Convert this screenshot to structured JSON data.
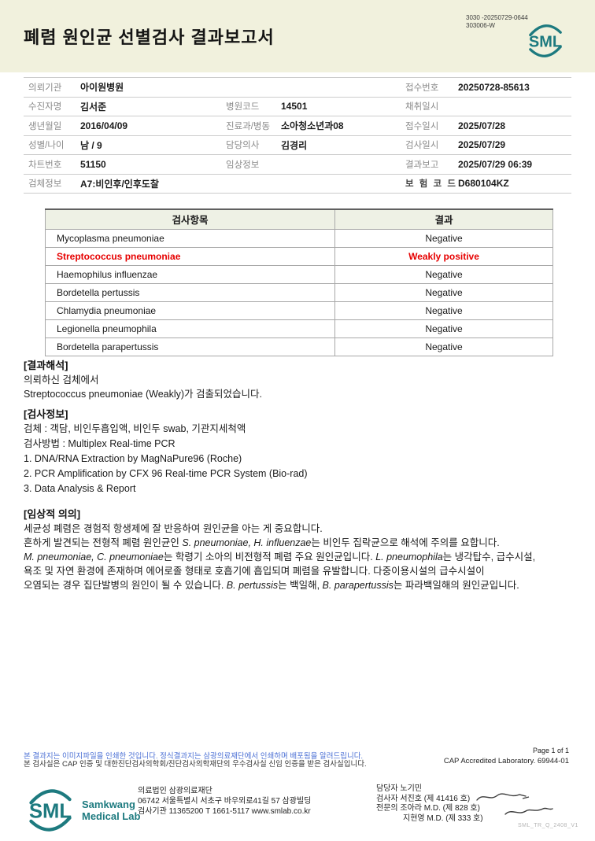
{
  "colors": {
    "accent_teal": "#1d7a7f",
    "header_band_bg": "#f1f1dd",
    "table_header_bg": "#eef1e5",
    "highlight_red": "#e60000",
    "notice_blue": "#4a6fd4"
  },
  "header": {
    "title": "폐렴 원인균 선별검사 결과보고서",
    "code_line1": "3030 -20250729-0644",
    "code_line2": "303006-W",
    "logo_text": "SML"
  },
  "info_rows": [
    {
      "l1": "의뢰기관",
      "v1": "아이원병원",
      "l2": "",
      "v2": "",
      "l3": "접수번호",
      "v3": "20250728-85613"
    },
    {
      "l1": "수진자명",
      "v1": "김서준",
      "l2": "병원코드",
      "v2": "14501",
      "l3": "채취일시",
      "v3": ""
    },
    {
      "l1": "생년월일",
      "v1": "2016/04/09",
      "l2": "진료과/병동",
      "v2": "소아청소년과08",
      "l3": "접수일시",
      "v3": "2025/07/28"
    },
    {
      "l1": "성별/나이",
      "v1": "남 / 9",
      "l2": "담당의사",
      "v2": "김경리",
      "l3": "검사일시",
      "v3": "2025/07/29"
    },
    {
      "l1": "차트번호",
      "v1": "51150",
      "l2": "임상정보",
      "v2": "",
      "l3": "결과보고",
      "v3": "2025/07/29 06:39"
    },
    {
      "l1": "검체정보",
      "v1": "A7:비인후/인후도찰",
      "l2": "",
      "v2": "",
      "l3": "보 험 코 드",
      "v3": "D680104KZ"
    }
  ],
  "results": {
    "headers": {
      "item": "검사항목",
      "result": "결과"
    },
    "rows": [
      {
        "item": "Mycoplasma pneumoniae",
        "result": "Negative",
        "highlight": false
      },
      {
        "item": "Streptococcus pneumoniae",
        "result": "Weakly positive",
        "highlight": true
      },
      {
        "item": "Haemophilus influenzae",
        "result": "Negative",
        "highlight": false
      },
      {
        "item": "Bordetella pertussis",
        "result": "Negative",
        "highlight": false
      },
      {
        "item": "Chlamydia pneumoniae",
        "result": "Negative",
        "highlight": false
      },
      {
        "item": "Legionella pneumophila",
        "result": "Negative",
        "highlight": false
      },
      {
        "item": "Bordetella parapertussis",
        "result": "Negative",
        "highlight": false
      }
    ]
  },
  "interpretation": {
    "heading": "[결과해석]",
    "line1": "의뢰하신 검체에서",
    "line2": "Streptococcus pneumoniae (Weakly)가 검출되었습니다."
  },
  "test_info": {
    "heading": "[검사정보]",
    "specimen": "검체 : 객담, 비인두흡입액, 비인두 swab, 기관지세척액",
    "method": "검사방법 : Multiplex Real-time PCR",
    "step1": "1. DNA/RNA Extraction by MagNaPure96 (Roche)",
    "step2": "2. PCR Amplification by CFX 96 Real-time PCR System (Bio-rad)",
    "step3": "3. Data Analysis & Report"
  },
  "clinical": {
    "heading": "[임상적 의의]",
    "lines": [
      [
        {
          "t": "세균성 폐렴은 경험적 항생제에 잘 반응하여 원인균을 아는 게 중요합니다.",
          "i": false
        }
      ],
      [
        {
          "t": "흔하게 발견되는 전형적 폐렴 원인균인 ",
          "i": false
        },
        {
          "t": "S. pneumoniae, H. influenzae",
          "i": true
        },
        {
          "t": "는 비인두 집락균으로 해석에 주의를 요합니다.",
          "i": false
        }
      ],
      [
        {
          "t": "M. pneumoniae, C. pneumoniae",
          "i": true
        },
        {
          "t": "는 학령기 소아의 비전형적 폐렴 주요 원인균입니다. ",
          "i": false
        },
        {
          "t": "L. pneumophila",
          "i": true
        },
        {
          "t": "는 냉각탑수, 급수시설,",
          "i": false
        }
      ],
      [
        {
          "t": "욕조 및 자연 환경에 존재하며 에어로졸 형태로 호흡기에 흡입되며 폐렴을 유발합니다. 다중이용시설의 급수시설이",
          "i": false
        }
      ],
      [
        {
          "t": "오염되는 경우 집단발병의 원인이 될 수 있습니다. ",
          "i": false
        },
        {
          "t": "B. pertussis",
          "i": true
        },
        {
          "t": "는 백일해, ",
          "i": false
        },
        {
          "t": "B. parapertussis",
          "i": true
        },
        {
          "t": "는 파라백일해의 원인균입니다.",
          "i": false
        }
      ]
    ]
  },
  "notices": {
    "line1": "본 결과지는 이미지파일을 인쇄한 것입니다. 정식결과지는 삼광의료재단에서 인쇄하며 배포됨을 알려드립니다.",
    "line2": "본 검사실은 CAP 인증 및 대한진단검사의학회/진단검사의학재단의 우수검사실 신임 인증을 받은 검사실입니다.",
    "page": "Page 1 of 1",
    "cap": "CAP Accredited Laboratory. 69944-01"
  },
  "footer": {
    "logo_text": "SML",
    "logo_name_line1": "Samkwang",
    "logo_name_line2": "Medical Lab",
    "org_line1": "의료법인 삼광의료재단",
    "org_line2": "06742 서울특별시 서초구 바우뫼로41길 57 삼광빌딩",
    "org_line3": "검사기관 11365200 T 1661-5117 www.smlab.co.kr",
    "staff_line1": "담당자 노기민",
    "staff_line2": "검사자 서진호 (제 41416 호)",
    "staff_line3": "전문의 조아라 M.D. (제 828 호)",
    "staff_line4": "지현영 M.D. (제 333 호)",
    "doc_code": "SML_TR_Q_2408_V1"
  }
}
